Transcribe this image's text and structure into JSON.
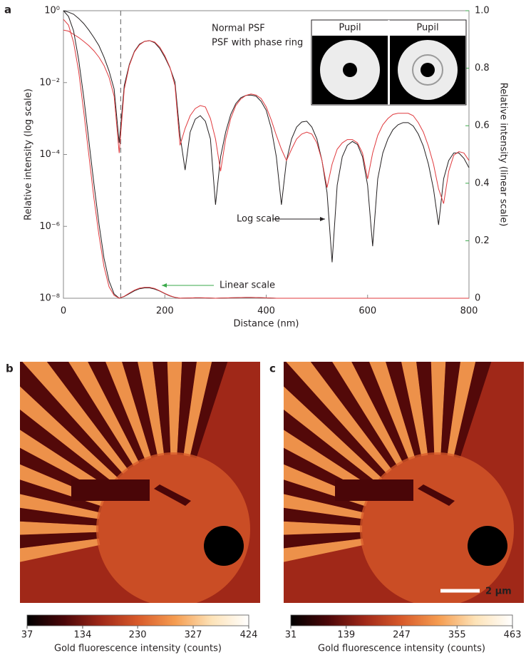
{
  "chart_data": [
    {
      "type": "line",
      "panel": "a",
      "x": [
        0,
        10,
        20,
        30,
        40,
        50,
        60,
        70,
        80,
        90,
        100,
        110,
        120,
        130,
        140,
        150,
        160,
        170,
        180,
        190,
        200,
        210,
        220,
        230,
        240,
        250,
        260,
        270,
        280,
        290,
        300,
        310,
        320,
        330,
        340,
        350,
        360,
        370,
        380,
        390,
        400,
        410,
        420,
        430,
        440,
        450,
        460,
        470,
        480,
        490,
        500,
        510,
        520,
        530,
        540,
        550,
        560,
        570,
        580,
        590,
        600,
        610,
        620,
        630,
        640,
        650,
        660,
        670,
        680,
        690,
        700,
        710,
        720,
        730,
        740,
        750,
        760,
        770,
        780,
        790,
        800
      ],
      "xlim": [
        0,
        800
      ],
      "xticks": [
        0,
        200,
        400,
        600,
        800
      ],
      "xlabel": "Distance (nm)",
      "ylabel": "Relative intensity (log scale)",
      "log_y": true,
      "ylim": [
        1e-08,
        1
      ],
      "yticks": [
        {
          "value": 1,
          "label": "10⁰"
        },
        {
          "value": 0.01,
          "label": "10⁻²"
        },
        {
          "value": 0.0001,
          "label": "10⁻⁴"
        },
        {
          "value": 1e-06,
          "label": "10⁻⁶"
        },
        {
          "value": 1e-08,
          "label": "10⁻⁸"
        }
      ],
      "y2label": "Relative intensity (linear scale)",
      "y2color": "#3aaa4a",
      "y2lim": [
        0,
        1
      ],
      "y2ticks": [
        0,
        0.2,
        0.4,
        0.6,
        0.8,
        {
          "value": 1,
          "label": "1.0"
        }
      ],
      "series": [
        {
          "name": "Normal PSF",
          "color": "#231f20",
          "values": [
            1.0,
            0.91,
            0.8,
            0.61,
            0.44,
            0.29,
            0.18,
            0.107,
            0.051,
            0.021,
            0.0066,
            0.00021,
            0.0083,
            0.032,
            0.074,
            0.117,
            0.14,
            0.147,
            0.128,
            0.089,
            0.051,
            0.026,
            0.0104,
            0.00034,
            3.7e-05,
            0.00042,
            0.00096,
            0.0012,
            0.00084,
            0.00027,
            4e-06,
            8.6e-05,
            0.00042,
            0.0013,
            0.0026,
            0.0038,
            0.0044,
            0.0045,
            0.0042,
            0.003,
            0.0017,
            0.00053,
            8.6e-05,
            4e-06,
            6.8e-05,
            0.00027,
            0.00058,
            0.0008,
            0.00084,
            0.00058,
            0.00027,
            6.8e-05,
            8.7e-06,
            1e-07,
            1.4e-05,
            8.6e-05,
            0.00018,
            0.00023,
            0.00019,
            8.6e-05,
            1.4e-05,
            2.8e-07,
            2.1e-05,
            0.00011,
            0.00027,
            0.00049,
            0.00067,
            0.00077,
            0.00077,
            0.00062,
            0.00037,
            0.00017,
            5.4e-05,
            1.1e-05,
            1.1e-06,
            2.1e-05,
            6.8e-05,
            0.00011,
            0.00011,
            7.8e-05,
            4.3e-05
          ]
        },
        {
          "name": "PSF with phase ring",
          "color": "#e03a3e",
          "values": [
            0.29,
            0.27,
            0.22,
            0.18,
            0.14,
            0.107,
            0.077,
            0.051,
            0.03,
            0.014,
            0.0042,
            0.00011,
            0.0066,
            0.03,
            0.071,
            0.112,
            0.14,
            0.147,
            0.134,
            0.097,
            0.056,
            0.027,
            0.0083,
            0.00018,
            0.00053,
            0.0012,
            0.0019,
            0.0023,
            0.0021,
            0.001,
            0.00027,
            3.4e-05,
            0.00027,
            0.001,
            0.0023,
            0.0035,
            0.0044,
            0.0048,
            0.0045,
            0.0036,
            0.0021,
            0.00091,
            0.00034,
            0.00014,
            6.8e-05,
            0.00014,
            0.00027,
            0.00037,
            0.00042,
            0.00037,
            0.00021,
            6.8e-05,
            1.2e-05,
            5.4e-05,
            0.00014,
            0.00021,
            0.00026,
            0.00026,
            0.00021,
            0.00011,
            2.1e-05,
            0.00011,
            0.00034,
            0.00067,
            0.001,
            0.0013,
            0.0014,
            0.0014,
            0.0014,
            0.0012,
            0.00077,
            0.00042,
            0.00017,
            5.4e-05,
            1.1e-05,
            4.3e-06,
            3.4e-05,
            9.5e-05,
            0.00012,
            0.00011,
            6.8e-05
          ]
        },
        {
          "color": "#231f20",
          "axis": "y2",
          "values": [
            1.0,
            0.98,
            0.93,
            0.83,
            0.7,
            0.55,
            0.4,
            0.26,
            0.14,
            0.06,
            0.015,
            0.0002,
            0.006,
            0.016,
            0.026,
            0.033,
            0.036,
            0.036,
            0.032,
            0.025,
            0.016,
            0.008,
            0.003,
            0.0001,
            0.0005,
            0.001,
            0.0015,
            0.0016,
            0.0012,
            0.0005,
            0,
            0.0005,
            0.001,
            0.0015,
            0.002,
            0.0025,
            0.0027,
            0.0027,
            0.0025,
            0.002,
            0.0012,
            0.0005,
            0.0001,
            0.0001,
            0.0001,
            0.0001,
            0.0001,
            0.0001,
            0.0001,
            0.0001,
            0.0001,
            0.0001,
            0.0001,
            0.0001,
            0.0001,
            0.0001,
            0.0001,
            0.0001,
            0.0001,
            0.0001,
            0.0001,
            0.0001,
            0.0001,
            0.0001,
            0.0001,
            0.0001,
            0.0001,
            0.0001,
            0.0001,
            0.0001,
            0.0001,
            0.0001,
            0.0001,
            0.0001,
            0.0001,
            0.0001,
            0.0001,
            0.0001,
            0.0001,
            0.0001,
            0.0001
          ]
        },
        {
          "color": "#e03a3e",
          "axis": "y2",
          "values": [
            0.97,
            0.95,
            0.89,
            0.79,
            0.65,
            0.5,
            0.35,
            0.22,
            0.11,
            0.04,
            0.01,
            0.0001,
            0.007,
            0.018,
            0.028,
            0.035,
            0.038,
            0.038,
            0.034,
            0.026,
            0.017,
            0.009,
            0.003,
            0.0002,
            0.0005,
            0.001,
            0.0015,
            0.0016,
            0.0012,
            0.0005,
            0,
            0.0005,
            0.001,
            0.0015,
            0.002,
            0.0025,
            0.0027,
            0.0027,
            0.0025,
            0.002,
            0.0012,
            0.0005,
            0.0001,
            0.0001,
            0.0001,
            0.0001,
            0.0001,
            0.0001,
            0.0001,
            0.0001,
            0.0001,
            0.0001,
            0.0001,
            0.0001,
            0.0001,
            0.0001,
            0.0001,
            0.0001,
            0.0001,
            0.0001,
            0.0001,
            0.0001,
            0.0001,
            0.0001,
            0.0001,
            0.0001,
            0.0001,
            0.0001,
            0.0001,
            0.0001,
            0.0001,
            0.0001,
            0.0001,
            0.0001,
            0.0001,
            0.0001,
            0.0001,
            0.0001,
            0.0001,
            0.0001,
            0.0001
          ]
        }
      ],
      "vline_x": 113,
      "annotations": [
        {
          "text": "Log scale",
          "color": "#231f20"
        },
        {
          "text": "Linear scale",
          "color": "#3aaa4a"
        }
      ],
      "inset": {
        "labels": [
          {
            "text": "Pupil",
            "color": "#231f20"
          },
          {
            "text": "Pupil",
            "color": "#e03a3e"
          }
        ]
      }
    },
    {
      "type": "heatmap",
      "panel": "b",
      "colormap": [
        "#000000",
        "#4a0608",
        "#a02818",
        "#d85a2a",
        "#f59c50",
        "#fde3b8",
        "#ffffff"
      ],
      "colorbar": {
        "lim": [
          37,
          424
        ],
        "ticks": [
          37,
          134,
          230,
          327,
          424
        ],
        "label": "Gold fluorescence intensity (counts)"
      }
    },
    {
      "type": "heatmap",
      "panel": "c",
      "colormap": [
        "#000000",
        "#4a0608",
        "#a02818",
        "#d85a2a",
        "#f59c50",
        "#fde3b8",
        "#ffffff"
      ],
      "colorbar": {
        "lim": [
          31,
          463
        ],
        "ticks": [
          31,
          139,
          247,
          355,
          463
        ],
        "label": "Gold fluorescence intensity (counts)"
      },
      "scale_bar": "2 μm"
    }
  ]
}
